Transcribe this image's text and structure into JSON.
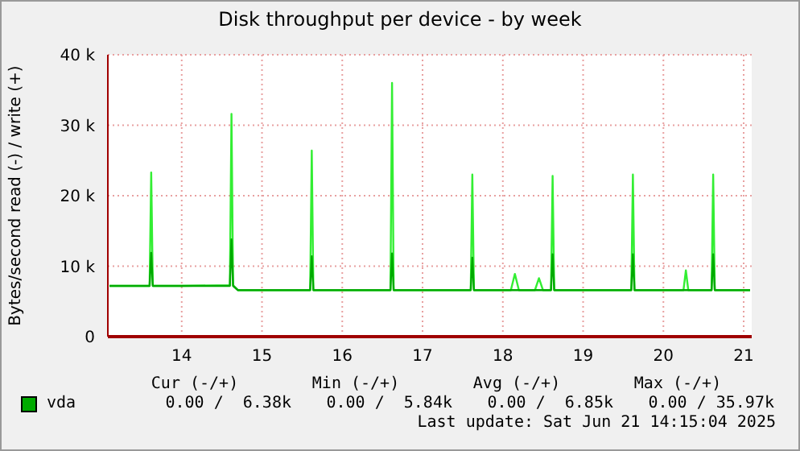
{
  "chart_data": {
    "type": "line",
    "title": "Disk throughput per device - by week",
    "ylabel": "Bytes/second read (-) / write (+)",
    "xlim": [
      13.08,
      21.1
    ],
    "xticks": [
      14,
      15,
      16,
      17,
      18,
      19,
      20,
      21
    ],
    "ylim": [
      0,
      40000
    ],
    "yticks": [
      0,
      {
        "value": 10000,
        "label": "10 k"
      },
      {
        "value": 20000,
        "label": "20 k"
      },
      {
        "value": 30000,
        "label": "30 k"
      },
      {
        "value": 40000,
        "label": "40 k"
      }
    ],
    "grid": true,
    "legend": "bottom",
    "marker": "none",
    "line_style": "solid",
    "series": [
      {
        "color": "#33ee33",
        "x": [
          13.1,
          13.6,
          13.62,
          13.64,
          14.0,
          14.6,
          14.62,
          14.64,
          14.7,
          15.0,
          15.6,
          15.62,
          15.64,
          16.0,
          16.6,
          16.62,
          16.64,
          17.0,
          17.6,
          17.62,
          17.64,
          18.1,
          18.15,
          18.2,
          18.4,
          18.45,
          18.5,
          18.6,
          18.62,
          18.64,
          19.0,
          19.6,
          19.62,
          19.64,
          20.0,
          20.25,
          20.28,
          20.31,
          20.6,
          20.62,
          20.64,
          21.0,
          21.08
        ],
        "values": [
          7200,
          7200,
          23300,
          7200,
          7200,
          7300,
          31600,
          7300,
          6600,
          6600,
          6600,
          26400,
          6600,
          6600,
          6600,
          36000,
          6600,
          6600,
          6600,
          23000,
          6600,
          6600,
          8900,
          6600,
          6600,
          8300,
          6600,
          6600,
          22800,
          6600,
          6600,
          6600,
          23000,
          6600,
          6600,
          6600,
          9400,
          6600,
          6600,
          23000,
          6600,
          6600,
          6600
        ]
      },
      {
        "name": "vda",
        "color": "#00aa00",
        "x": [
          13.1,
          13.6,
          13.62,
          13.64,
          14.0,
          14.6,
          14.62,
          14.64,
          14.7,
          15.0,
          15.6,
          15.62,
          15.64,
          16.0,
          16.6,
          16.62,
          16.64,
          17.0,
          17.6,
          17.62,
          17.64,
          18.0,
          18.6,
          18.62,
          18.64,
          19.0,
          19.6,
          19.62,
          19.64,
          20.0,
          20.6,
          20.62,
          20.64,
          21.0,
          21.08
        ],
        "values": [
          7200,
          7200,
          11900,
          7200,
          7200,
          7200,
          13800,
          7200,
          6600,
          6600,
          6600,
          11400,
          6600,
          6600,
          6600,
          11800,
          6600,
          6600,
          6600,
          11200,
          6600,
          6600,
          6600,
          11700,
          6600,
          6600,
          6600,
          11700,
          6600,
          6600,
          6600,
          11700,
          6600,
          6600,
          6600
        ]
      }
    ],
    "annotations": [
      "Cur (-/+)",
      "Min (-/+)",
      "Avg (-/+)",
      "Max (-/+)",
      "0.00 /  6.38k",
      "0.00 /  5.84k",
      "0.00 /  6.85k",
      "0.00 / 35.97k",
      "Last update: Sat Jun 21 14:15:04 2025"
    ]
  }
}
